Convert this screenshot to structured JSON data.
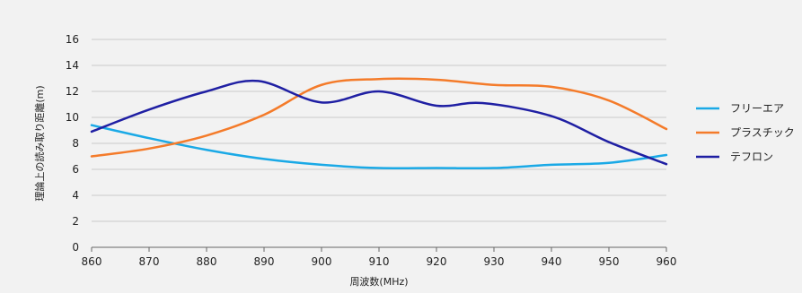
{
  "chart_data": {
    "type": "line",
    "title": "",
    "xlabel": "周波数(MHz)",
    "ylabel": "理論上の読み取り距離(m)",
    "xlim": [
      860,
      960
    ],
    "ylim": [
      0,
      16
    ],
    "x_ticks": [
      "860",
      "870",
      "880",
      "890",
      "900",
      "910",
      "920",
      "930",
      "940",
      "950",
      "960"
    ],
    "y_ticks": [
      "0",
      "2",
      "4",
      "6",
      "8",
      "10",
      "12",
      "14",
      "16"
    ],
    "grid": true,
    "legend_position": "right",
    "series": [
      {
        "name": "フリーエア",
        "color": "#1aa9e6",
        "x": [
          860,
          870,
          880,
          890,
          900,
          910,
          920,
          930,
          940,
          950,
          960
        ],
        "y": [
          9.4,
          8.4,
          7.5,
          6.8,
          6.35,
          6.1,
          6.1,
          6.1,
          6.35,
          6.5,
          7.1
        ]
      },
      {
        "name": "プラスチック",
        "color": "#f47b2a",
        "x": [
          860,
          870,
          880,
          890,
          900,
          910,
          920,
          930,
          940,
          950,
          960
        ],
        "y": [
          7.0,
          7.6,
          8.6,
          10.2,
          12.5,
          12.95,
          12.9,
          12.5,
          12.35,
          11.3,
          9.1
        ]
      },
      {
        "name": "テフロン",
        "color": "#1f1fa3",
        "x": [
          860,
          870,
          880,
          889,
          900,
          910,
          920,
          928,
          940,
          950,
          960
        ],
        "y": [
          8.9,
          10.6,
          12.0,
          12.8,
          11.15,
          12.0,
          10.9,
          11.1,
          10.1,
          8.1,
          6.4
        ]
      }
    ]
  }
}
